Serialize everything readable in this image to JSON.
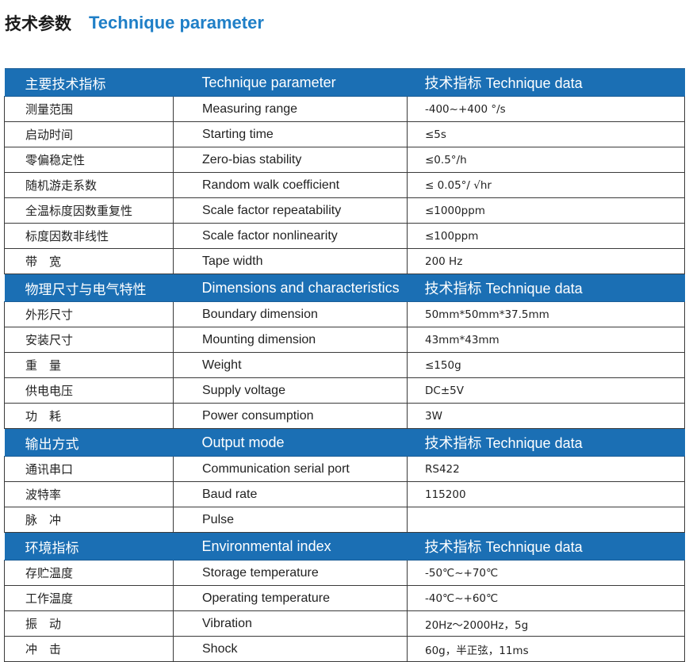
{
  "title": {
    "zh": "技术参数",
    "en": "Technique parameter"
  },
  "colors": {
    "header_bg": "#1b6fb4",
    "title_en": "#1f7fc7"
  },
  "sections": [
    {
      "header": [
        "主要技术指标",
        "Technique parameter",
        "技术指标   Technique data"
      ],
      "rows": [
        [
          "测量范围",
          "Measuring range",
          "-400~+400 °/s"
        ],
        [
          "启动时间",
          "Starting time",
          "≤5s"
        ],
        [
          "零偏稳定性",
          "Zero-bias stability",
          "≤0.5°/h"
        ],
        [
          "随机游走系数",
          "Random walk coefficient",
          "≤ 0.05°/ √hr"
        ],
        [
          "全温标度因数重复性",
          "Scale factor repeatability",
          "≤1000ppm"
        ],
        [
          "标度因数非线性",
          "Scale factor nonlinearity",
          "≤100ppm"
        ],
        [
          "带　宽",
          "Tape width",
          "200 Hz"
        ]
      ]
    },
    {
      "header": [
        "物理尺寸与电气特性",
        "Dimensions and characteristics",
        "技术指标   Technique data"
      ],
      "rows": [
        [
          "外形尺寸",
          "Boundary dimension",
          "50mm*50mm*37.5mm"
        ],
        [
          "安装尺寸",
          "Mounting dimension",
          "43mm*43mm"
        ],
        [
          "重　量",
          "Weight",
          "≤150g"
        ],
        [
          "供电电压",
          "Supply voltage",
          "DC±5V"
        ],
        [
          "功　耗",
          "Power consumption",
          "3W"
        ]
      ]
    },
    {
      "header": [
        "输出方式",
        "Output mode",
        "技术指标   Technique data"
      ],
      "rows": [
        [
          "通讯串口",
          "Communication serial port",
          "RS422"
        ],
        [
          "波特率",
          "Baud rate",
          "115200"
        ],
        [
          "脉　冲",
          "Pulse",
          ""
        ]
      ]
    },
    {
      "header": [
        "环境指标",
        "Environmental index",
        "技术指标   Technique data"
      ],
      "rows": [
        [
          "存贮温度",
          "Storage temperature",
          "-50℃~+70℃"
        ],
        [
          "工作温度",
          "Operating temperature",
          "-40℃~+60℃"
        ],
        [
          "振　动",
          "Vibration",
          "20Hz～2000Hz，5g"
        ],
        [
          "冲　击",
          "Shock",
          "60g，半正弦，11ms"
        ]
      ]
    }
  ]
}
